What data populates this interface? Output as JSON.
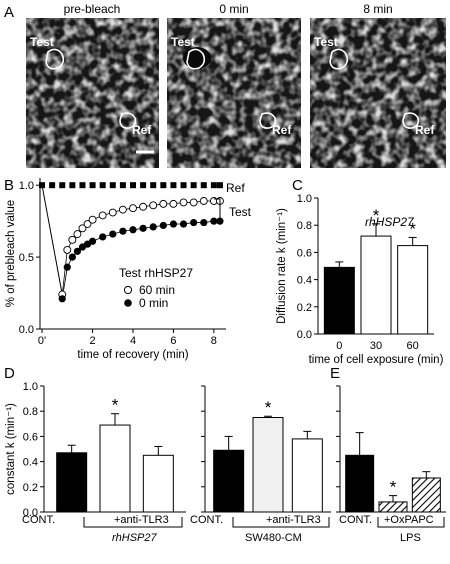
{
  "panels": {
    "A": {
      "letter": "A",
      "images": [
        {
          "title": "pre-bleach",
          "test_label": "Test",
          "ref_label": "Ref"
        },
        {
          "title": "0 min",
          "test_label": "Test",
          "ref_label": "Ref"
        },
        {
          "title": "8 min",
          "test_label": "Test",
          "ref_label": "Ref"
        }
      ]
    },
    "B": {
      "letter": "B"
    },
    "C": {
      "letter": "C"
    },
    "D": {
      "letter": "D"
    },
    "E": {
      "letter": "E"
    }
  },
  "chart_data": [
    {
      "id": "B",
      "type": "scatter",
      "xlabel": "time of recovery (min)",
      "ylabel": "% of prebleach value",
      "x_ticks": [
        "0",
        "0'",
        "2",
        "4",
        "6",
        "8"
      ],
      "y_ticks": [
        "0.0",
        "0.5",
        "1.0"
      ],
      "xlim": [
        -0.6,
        8.6
      ],
      "ylim": [
        0,
        1.05
      ],
      "legend_title": "Test rhHSP27",
      "series": [
        {
          "name": "Ref",
          "marker": "square",
          "x": [
            -0.5,
            0,
            0.5,
            1,
            1.5,
            2,
            2.5,
            3,
            3.5,
            4,
            4.5,
            5,
            5.5,
            6,
            6.5,
            7,
            7.5,
            8,
            8.3
          ],
          "y": [
            1,
            1,
            1,
            1,
            1,
            1,
            1,
            1,
            1,
            1,
            1,
            1,
            1,
            1,
            1,
            1,
            1,
            1,
            1
          ]
        },
        {
          "name": "60 min",
          "marker": "open",
          "x": [
            0.5,
            0.75,
            1,
            1.25,
            1.5,
            1.75,
            2,
            2.5,
            3,
            3.5,
            4,
            4.5,
            5,
            5.5,
            6,
            6.5,
            7,
            7.5,
            8,
            8.3
          ],
          "y": [
            0.24,
            0.55,
            0.62,
            0.66,
            0.7,
            0.73,
            0.76,
            0.79,
            0.81,
            0.83,
            0.84,
            0.85,
            0.86,
            0.87,
            0.87,
            0.88,
            0.88,
            0.89,
            0.89,
            0.89
          ]
        },
        {
          "name": "0 min",
          "marker": "filled",
          "x": [
            0.5,
            0.75,
            1,
            1.25,
            1.5,
            1.75,
            2,
            2.5,
            3,
            3.5,
            4,
            4.5,
            5,
            5.5,
            6,
            6.5,
            7,
            7.5,
            8,
            8.3
          ],
          "y": [
            0.21,
            0.43,
            0.5,
            0.54,
            0.57,
            0.59,
            0.61,
            0.64,
            0.66,
            0.68,
            0.69,
            0.7,
            0.71,
            0.72,
            0.73,
            0.73,
            0.74,
            0.74,
            0.75,
            0.75
          ]
        }
      ],
      "annotations": [
        "Ref",
        "Test"
      ]
    },
    {
      "id": "C",
      "type": "bar",
      "title": "rhHSP27",
      "xlabel": "time of cell exposure (min)",
      "ylabel": "Diffusion rate k (min⁻¹)",
      "categories": [
        "0",
        "30",
        "60"
      ],
      "values": [
        0.49,
        0.72,
        0.65
      ],
      "errors": [
        0.04,
        0.09,
        0.06
      ],
      "fills": [
        "#000000",
        "#ffffff",
        "#ffffff"
      ],
      "significance": [
        "",
        "*",
        "*"
      ],
      "ylim": [
        0,
        1.0
      ],
      "y_ticks": [
        "0.0",
        "0.2",
        "0.4",
        "0.6",
        "0.8",
        "1.0"
      ]
    },
    {
      "id": "D1",
      "type": "bar",
      "ylabel": "constant k (min⁻¹)",
      "categories": [
        "CONT.",
        "rhHSP27",
        "+anti-TLR3"
      ],
      "group_label": "rhHSP27",
      "values": [
        0.47,
        0.69,
        0.45
      ],
      "errors": [
        0.06,
        0.09,
        0.07
      ],
      "fills": [
        "#000000",
        "#ffffff",
        "#ffffff"
      ],
      "significance": [
        "",
        "*",
        ""
      ],
      "ylim": [
        0,
        1.0
      ],
      "y_ticks": [
        "0.0",
        "0.2",
        "0.4",
        "0.6",
        "0.8",
        "1.0"
      ]
    },
    {
      "id": "D2",
      "type": "bar",
      "categories": [
        "CONT.",
        "SW480-CM",
        "+anti-TLR3"
      ],
      "group_label": "SW480-CM",
      "values": [
        0.49,
        0.75,
        0.58
      ],
      "errors": [
        0.11,
        0.01,
        0.06
      ],
      "fills": [
        "#000000",
        "#f0f0f0",
        "#ffffff"
      ],
      "significance": [
        "",
        "*",
        ""
      ],
      "ylim": [
        0,
        1.0
      ],
      "y_ticks": []
    },
    {
      "id": "E",
      "type": "bar",
      "categories": [
        "CONT.",
        "LPS",
        "+OxPAPC"
      ],
      "group_label": "LPS",
      "values": [
        0.45,
        0.08,
        0.27
      ],
      "errors": [
        0.18,
        0.05,
        0.05
      ],
      "fills": [
        "#000000",
        "hatch",
        "hatch"
      ],
      "significance": [
        "",
        "*",
        ""
      ],
      "ylim": [
        0,
        1.0
      ],
      "y_ticks": []
    }
  ],
  "labels": {
    "cont": "CONT.",
    "anti_tlr3": "+anti-TLR3",
    "rh_group": "rhHSP27",
    "sw_group": "SW480-CM",
    "lps_group": "LPS",
    "oxpapc": "+OxPAPC",
    "legend_60": "60 min",
    "legend_0": "0 min"
  },
  "colors": {
    "cell_dark": "#1a1a1a",
    "cell_light": "#bdbdbd",
    "bar_black": "#000000"
  }
}
